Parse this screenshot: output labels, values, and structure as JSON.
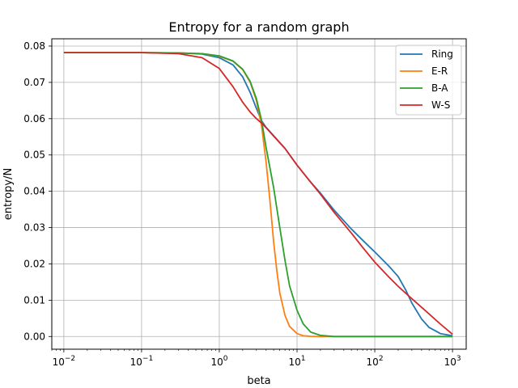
{
  "chart_data": {
    "type": "line",
    "title": "Entropy for a random graph",
    "xlabel": "beta",
    "ylabel": "entropy/N",
    "x_scale": "log",
    "xlim": [
      0.007,
      1500
    ],
    "ylim": [
      -0.0035,
      0.082
    ],
    "grid": true,
    "legend_position": "top-right",
    "x_ticks": [
      {
        "value": 0.01,
        "base": "10",
        "exp": "−2"
      },
      {
        "value": 0.1,
        "base": "10",
        "exp": "−1"
      },
      {
        "value": 1,
        "base": "10",
        "exp": "0"
      },
      {
        "value": 10,
        "base": "10",
        "exp": "1"
      },
      {
        "value": 100,
        "base": "10",
        "exp": "2"
      },
      {
        "value": 1000,
        "base": "10",
        "exp": "3"
      }
    ],
    "y_ticks": [
      {
        "value": 0.0,
        "label": "0.00"
      },
      {
        "value": 0.01,
        "label": "0.01"
      },
      {
        "value": 0.02,
        "label": "0.02"
      },
      {
        "value": 0.03,
        "label": "0.03"
      },
      {
        "value": 0.04,
        "label": "0.04"
      },
      {
        "value": 0.05,
        "label": "0.05"
      },
      {
        "value": 0.06,
        "label": "0.06"
      },
      {
        "value": 0.07,
        "label": "0.07"
      },
      {
        "value": 0.08,
        "label": "0.08"
      }
    ],
    "series": [
      {
        "name": "Ring",
        "color": "#1f77b4",
        "points": [
          [
            0.01,
            0.0782
          ],
          [
            0.1,
            0.0782
          ],
          [
            0.3,
            0.0781
          ],
          [
            0.6,
            0.0778
          ],
          [
            1,
            0.0768
          ],
          [
            1.5,
            0.0748
          ],
          [
            2,
            0.0715
          ],
          [
            2.5,
            0.0672
          ],
          [
            3,
            0.0628
          ],
          [
            3.5,
            0.0594
          ],
          [
            4,
            0.0576
          ],
          [
            5,
            0.0553
          ],
          [
            7,
            0.0518
          ],
          [
            10,
            0.0472
          ],
          [
            15,
            0.0425
          ],
          [
            20,
            0.0395
          ],
          [
            30,
            0.0348
          ],
          [
            50,
            0.0296
          ],
          [
            70,
            0.0265
          ],
          [
            100,
            0.0233
          ],
          [
            150,
            0.0195
          ],
          [
            200,
            0.0165
          ],
          [
            250,
            0.0128
          ],
          [
            300,
            0.0092
          ],
          [
            400,
            0.0048
          ],
          [
            500,
            0.0025
          ],
          [
            700,
            0.0008
          ],
          [
            1000,
            0.0002
          ]
        ]
      },
      {
        "name": "E-R",
        "color": "#ff7f0e",
        "points": [
          [
            0.01,
            0.0782
          ],
          [
            0.1,
            0.0782
          ],
          [
            0.3,
            0.0781
          ],
          [
            0.6,
            0.0779
          ],
          [
            1,
            0.0772
          ],
          [
            1.5,
            0.0758
          ],
          [
            2,
            0.0735
          ],
          [
            2.5,
            0.07
          ],
          [
            3,
            0.065
          ],
          [
            3.5,
            0.058
          ],
          [
            4,
            0.048
          ],
          [
            4.5,
            0.037
          ],
          [
            5,
            0.026
          ],
          [
            5.5,
            0.018
          ],
          [
            6,
            0.012
          ],
          [
            7,
            0.0058
          ],
          [
            8,
            0.0028
          ],
          [
            10,
            0.0008
          ],
          [
            12,
            0.0002
          ],
          [
            15,
            5e-05
          ],
          [
            20,
            0.0
          ],
          [
            100,
            0.0
          ],
          [
            1000,
            0.0
          ]
        ]
      },
      {
        "name": "B-A",
        "color": "#2ca02c",
        "points": [
          [
            0.01,
            0.0782
          ],
          [
            0.1,
            0.0782
          ],
          [
            0.3,
            0.0781
          ],
          [
            0.6,
            0.0779
          ],
          [
            1,
            0.0773
          ],
          [
            1.5,
            0.0759
          ],
          [
            2,
            0.0736
          ],
          [
            2.5,
            0.0702
          ],
          [
            3,
            0.0655
          ],
          [
            3.5,
            0.0595
          ],
          [
            4,
            0.052
          ],
          [
            5,
            0.041
          ],
          [
            6,
            0.03
          ],
          [
            7,
            0.021
          ],
          [
            8,
            0.014
          ],
          [
            10,
            0.0072
          ],
          [
            12,
            0.0035
          ],
          [
            15,
            0.0012
          ],
          [
            20,
            0.0003
          ],
          [
            30,
            0.0
          ],
          [
            100,
            0.0
          ],
          [
            1000,
            0.0
          ]
        ]
      },
      {
        "name": "W-S",
        "color": "#d62728",
        "points": [
          [
            0.01,
            0.0782
          ],
          [
            0.1,
            0.0782
          ],
          [
            0.3,
            0.0779
          ],
          [
            0.6,
            0.0768
          ],
          [
            1,
            0.0738
          ],
          [
            1.5,
            0.0688
          ],
          [
            2,
            0.0645
          ],
          [
            2.5,
            0.0618
          ],
          [
            3,
            0.06
          ],
          [
            3.5,
            0.0588
          ],
          [
            4,
            0.0575
          ],
          [
            5,
            0.0552
          ],
          [
            7,
            0.0518
          ],
          [
            10,
            0.0472
          ],
          [
            15,
            0.0425
          ],
          [
            20,
            0.0392
          ],
          [
            30,
            0.0342
          ],
          [
            50,
            0.0285
          ],
          [
            70,
            0.0245
          ],
          [
            100,
            0.0205
          ],
          [
            150,
            0.0165
          ],
          [
            200,
            0.0138
          ],
          [
            300,
            0.0104
          ],
          [
            500,
            0.0062
          ],
          [
            700,
            0.0034
          ],
          [
            1000,
            0.0006
          ]
        ]
      }
    ]
  }
}
